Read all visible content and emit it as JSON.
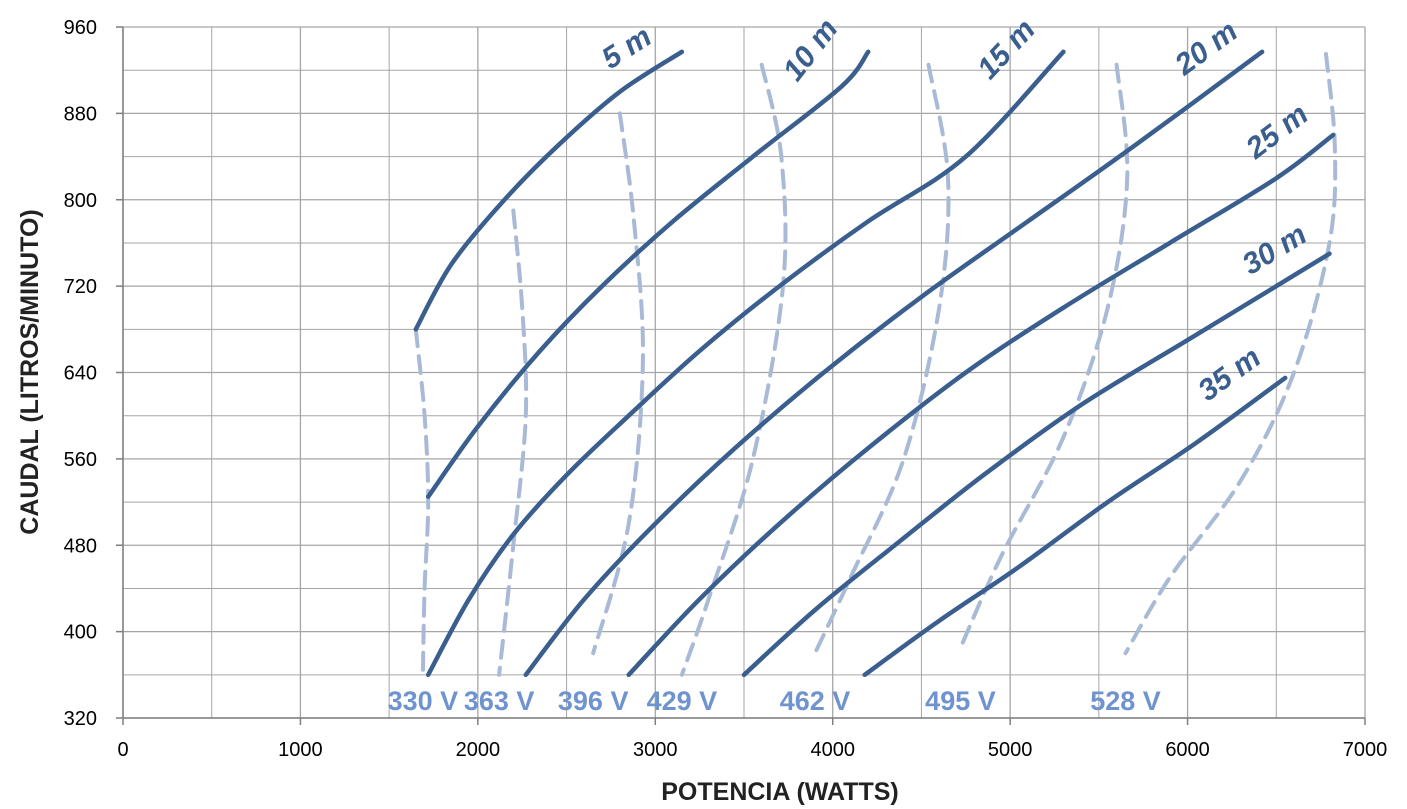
{
  "chart_data": {
    "type": "line",
    "title": "",
    "xlabel": "POTENCIA (WATTS)",
    "ylabel": "CAUDAL (LITROS/MINUTO)",
    "xlim": [
      0,
      7000
    ],
    "ylim": [
      320,
      960
    ],
    "x_ticks": [
      0,
      1000,
      2000,
      3000,
      4000,
      5000,
      6000,
      7000
    ],
    "y_ticks": [
      320,
      400,
      480,
      560,
      640,
      720,
      800,
      880,
      960
    ],
    "grid": true,
    "colors": {
      "head_curves": "#3a5f8e",
      "voltage_curves": "#a9bad6",
      "voltage_labels": "#6f93cf",
      "grid": "#a6a6a6"
    },
    "series": [
      {
        "name": "5 m",
        "kind": "head",
        "x": [
          1650,
          1850,
          2150,
          2450,
          2800,
          3150
        ],
        "y": [
          680,
          740,
          800,
          850,
          900,
          937
        ]
      },
      {
        "name": "10 m",
        "kind": "head",
        "x": [
          1720,
          2000,
          2350,
          2700,
          3100,
          3550,
          4050,
          4200
        ],
        "y": [
          525,
          590,
          660,
          720,
          780,
          840,
          905,
          937
        ]
      },
      {
        "name": "15 m",
        "kind": "head",
        "x": [
          1720,
          1950,
          2200,
          2500,
          2850,
          3250,
          3700,
          4200,
          4750,
          5300
        ],
        "y": [
          360,
          430,
          490,
          545,
          600,
          660,
          720,
          780,
          840,
          937
        ]
      },
      {
        "name": "20 m",
        "kind": "head",
        "x": [
          2270,
          2600,
          3000,
          3450,
          3950,
          4500,
          5100,
          5700,
          6420
        ],
        "y": [
          360,
          430,
          500,
          570,
          640,
          710,
          780,
          850,
          937
        ]
      },
      {
        "name": "25 m",
        "kind": "head",
        "x": [
          2850,
          3250,
          3700,
          4200,
          4750,
          5300,
          5900,
          6500,
          6820
        ],
        "y": [
          360,
          430,
          500,
          570,
          640,
          700,
          760,
          820,
          860
        ]
      },
      {
        "name": "30 m",
        "kind": "head",
        "x": [
          3500,
          3900,
          4350,
          4850,
          5400,
          6000,
          6550,
          6800
        ],
        "y": [
          360,
          420,
          480,
          545,
          610,
          670,
          725,
          750
        ]
      },
      {
        "name": "35 m",
        "kind": "head",
        "x": [
          4180,
          4600,
          5050,
          5550,
          6050,
          6550
        ],
        "y": [
          360,
          410,
          460,
          520,
          575,
          635
        ]
      },
      {
        "name": "330 V",
        "kind": "voltage",
        "x": [
          1650,
          1700,
          1720,
          1700,
          1690
        ],
        "y": [
          680,
          600,
          520,
          440,
          360
        ]
      },
      {
        "name": "363 V",
        "kind": "voltage",
        "x": [
          2200,
          2250,
          2270,
          2200,
          2120
        ],
        "y": [
          790,
          700,
          600,
          480,
          360
        ]
      },
      {
        "name": "396 V",
        "kind": "voltage",
        "x": [
          2800,
          2880,
          2930,
          2850,
          2650
        ],
        "y": [
          880,
          780,
          650,
          500,
          380
        ]
      },
      {
        "name": "429 V",
        "kind": "voltage",
        "x": [
          3600,
          3710,
          3720,
          3550,
          3300,
          3150
        ],
        "y": [
          925,
          840,
          720,
          560,
          430,
          360
        ]
      },
      {
        "name": "462 V",
        "kind": "voltage",
        "x": [
          4540,
          4650,
          4600,
          4400,
          4100,
          3900
        ],
        "y": [
          925,
          820,
          700,
          560,
          450,
          380
        ]
      },
      {
        "name": "495 V",
        "kind": "voltage",
        "x": [
          5600,
          5660,
          5550,
          5300,
          4950,
          4720
        ],
        "y": [
          925,
          820,
          700,
          580,
          470,
          385
        ]
      },
      {
        "name": "528 V",
        "kind": "voltage",
        "x": [
          6780,
          6830,
          6800,
          6600,
          6300,
          5900,
          5650
        ],
        "y": [
          935,
          850,
          760,
          640,
          540,
          450,
          380
        ]
      }
    ]
  }
}
